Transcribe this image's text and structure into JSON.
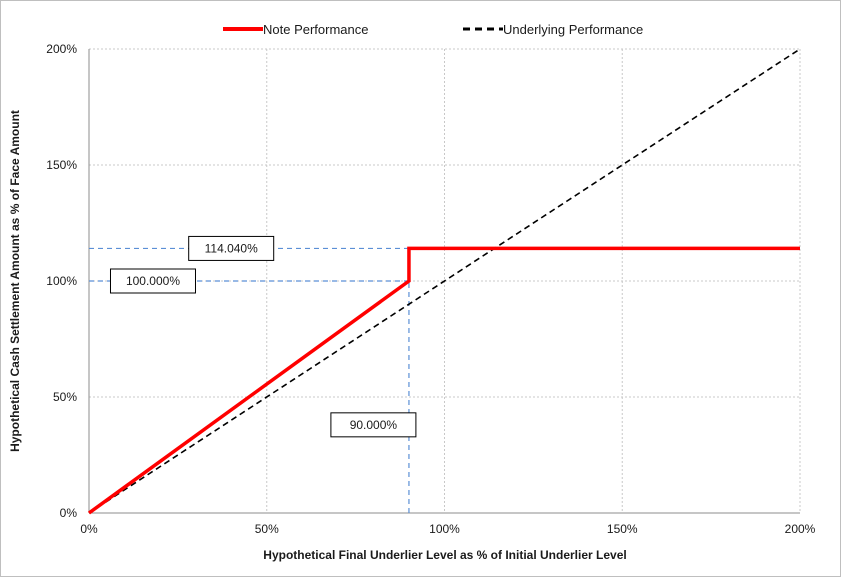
{
  "chart_data": {
    "type": "line",
    "xlabel": "Hypothetical Final Underlier Level as % of Initial Underlier Level",
    "ylabel": "Hypothetical Cash Settlement Amount as % of Face Amount",
    "xlim": [
      0,
      200
    ],
    "ylim": [
      0,
      200
    ],
    "x_ticks": [
      0,
      50,
      100,
      150,
      200
    ],
    "y_ticks": [
      0,
      50,
      100,
      150,
      200
    ],
    "x_tick_labels": [
      "0%",
      "50%",
      "100%",
      "150%",
      "200%"
    ],
    "y_tick_labels": [
      "0%",
      "50%",
      "100%",
      "150%",
      "200%"
    ],
    "grid": true,
    "legend_position": "top",
    "series": [
      {
        "name": "Note Performance",
        "color": "#ff0000",
        "style": "solid",
        "points": [
          [
            0,
            0
          ],
          [
            90,
            100
          ],
          [
            90,
            114.04
          ],
          [
            200,
            114.04
          ]
        ]
      },
      {
        "name": "Underlying Performance",
        "color": "#000000",
        "style": "dashed",
        "points": [
          [
            0,
            0
          ],
          [
            200,
            200
          ]
        ]
      }
    ],
    "reference_lines": [
      {
        "axis": "y",
        "value": 114.04,
        "to_x": 90,
        "color": "#5b8fd6"
      },
      {
        "axis": "y",
        "value": 100,
        "to_x": 90,
        "color": "#5b8fd6"
      },
      {
        "axis": "x",
        "value": 90,
        "to_y": 114.04,
        "color": "#5b8fd6"
      }
    ],
    "annotations": [
      {
        "label": "114.040%",
        "x": 40,
        "y": 114.04
      },
      {
        "label": "100.000%",
        "x": 18,
        "y": 100
      },
      {
        "label": "90.000%",
        "x": 80,
        "y": 38
      }
    ]
  }
}
